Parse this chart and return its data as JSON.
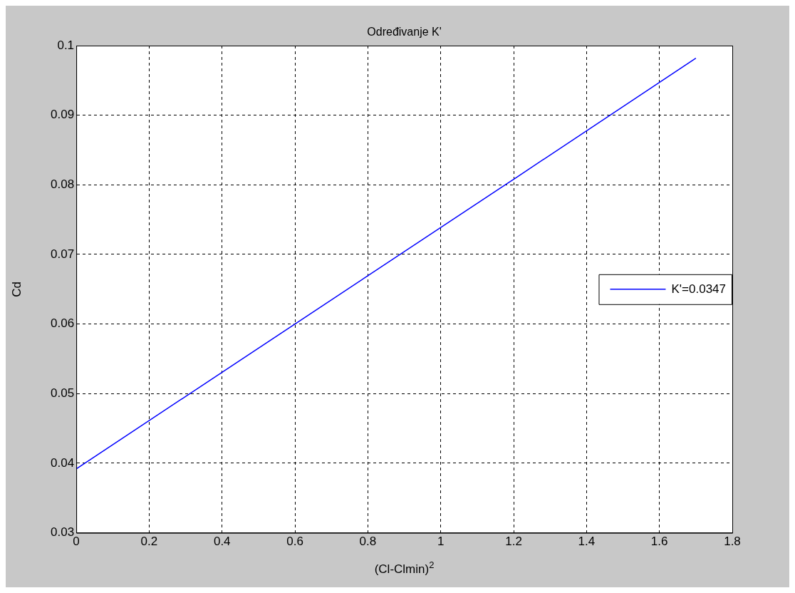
{
  "chart_data": {
    "type": "line",
    "title": "Određivanje K'",
    "xlabel": "(Cl-Clmin)$^{2}$",
    "ylabel": "Cd",
    "x": [
      0,
      0.6,
      1.2,
      1.7
    ],
    "series": [
      {
        "name": "K'=0.0347",
        "color": "#0000ff",
        "values": [
          0.0392,
          0.06,
          0.0808,
          0.0982
        ]
      }
    ],
    "xlim": [
      0,
      1.8
    ],
    "xticks": [
      0,
      0.2,
      0.4,
      0.6,
      0.8,
      1,
      1.2,
      1.4,
      1.6,
      1.8
    ],
    "ylim": [
      0.03,
      0.1
    ],
    "yticks": [
      0.03,
      0.04,
      0.05,
      0.06,
      0.07,
      0.08,
      0.09,
      0.1
    ],
    "grid": true,
    "legend": "right",
    "marker": "none",
    "line_style": "solid"
  }
}
